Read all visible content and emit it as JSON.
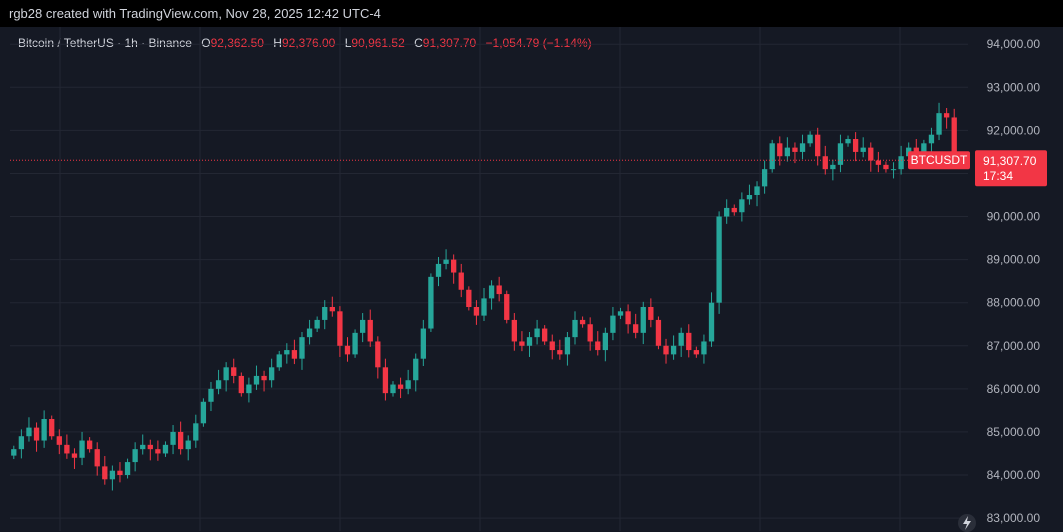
{
  "header": {
    "credit": "rgb28 created with TradingView.com, Nov 28, 2025 12:42 UTC-4"
  },
  "legend": {
    "symbol": "Bitcoin / TetherUS · 1h · Binance",
    "open_label": "O",
    "open": "92,362.50",
    "high_label": "H",
    "high": "92,376.00",
    "low_label": "L",
    "low": "90,961.52",
    "close_label": "C",
    "close": "91,307.70",
    "change": "−1,054.79 (−1.14%)"
  },
  "price_tag": {
    "symbol": "BTCUSDT",
    "price": "91,307.70",
    "countdown": "17:34"
  },
  "colors": {
    "up": "#26a69a",
    "down": "#f23645",
    "background": "#151924",
    "grid": "#232733",
    "text": "#b2b5be"
  },
  "icons": {
    "bottom_right": "lightning-icon"
  },
  "chart_data": {
    "type": "candlestick",
    "yticks": [
      "83,000.00",
      "84,000.00",
      "85,000.00",
      "86,000.00",
      "87,000.00",
      "88,000.00",
      "89,000.00",
      "90,000.00",
      "91,000.00",
      "92,000.00",
      "93,000.00",
      "94,000.00"
    ],
    "ylim": [
      82700,
      94400
    ],
    "last_price": 91307.7,
    "closes": [
      84600,
      84900,
      85100,
      84800,
      85300,
      84900,
      84700,
      84500,
      84400,
      84800,
      84600,
      84200,
      83900,
      84100,
      84000,
      84300,
      84600,
      84700,
      84600,
      84500,
      84700,
      85000,
      84600,
      84800,
      85200,
      85700,
      86000,
      86200,
      86500,
      86300,
      85900,
      86100,
      86300,
      86200,
      86500,
      86800,
      86900,
      86700,
      87200,
      87400,
      87600,
      87900,
      87800,
      87000,
      86800,
      87300,
      87600,
      87100,
      86500,
      85900,
      86100,
      86000,
      86200,
      86700,
      87400,
      88600,
      88900,
      89000,
      88700,
      88300,
      87900,
      87700,
      88100,
      88400,
      88200,
      87600,
      87100,
      87000,
      87200,
      87400,
      87100,
      86900,
      86800,
      87200,
      87600,
      87500,
      87100,
      86900,
      87300,
      87700,
      87800,
      87500,
      87300,
      87900,
      87600,
      87000,
      86800,
      87000,
      87300,
      86900,
      86800,
      87100,
      88000,
      90000,
      90200,
      90100,
      90400,
      90500,
      90700,
      91100,
      91700,
      91400,
      91600,
      91500,
      91700,
      91900,
      91400,
      91100,
      91200,
      91700,
      91800,
      91500,
      91600,
      91300,
      91200,
      91100,
      91100,
      91400,
      91600,
      91500,
      91700,
      91900,
      92400,
      92300,
      91300
    ]
  }
}
